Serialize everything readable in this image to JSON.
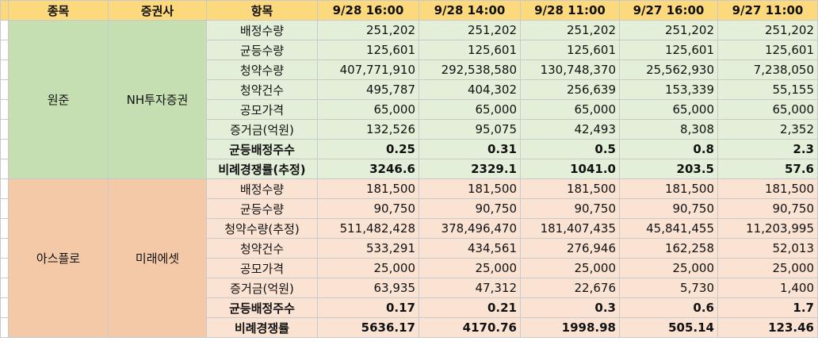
{
  "headers": {
    "stock": "종목",
    "broker": "증권사",
    "item": "항목",
    "times": [
      "9/28 16:00",
      "9/28 14:00",
      "9/28 11:00",
      "9/27 16:00",
      "9/27 11:00"
    ]
  },
  "colors": {
    "header_bg": "#fcd97c",
    "group1_dark": "#c6dfb2",
    "group1_light": "#e3efd9",
    "group2_dark": "#f4c9a8",
    "group2_light": "#fbe3d4"
  },
  "groups": [
    {
      "stock": "원준",
      "broker": "NH투자증권",
      "rows": [
        {
          "label": "배정수량",
          "bold": false,
          "values": [
            "251,202",
            "251,202",
            "251,202",
            "251,202",
            "251,202"
          ]
        },
        {
          "label": "균등수량",
          "bold": false,
          "values": [
            "125,601",
            "125,601",
            "125,601",
            "125,601",
            "125,601"
          ]
        },
        {
          "label": "청약수량",
          "bold": false,
          "values": [
            "407,771,910",
            "292,538,580",
            "130,748,370",
            "25,562,930",
            "7,238,050"
          ]
        },
        {
          "label": "청약건수",
          "bold": false,
          "values": [
            "495,787",
            "404,302",
            "256,639",
            "153,339",
            "55,155"
          ]
        },
        {
          "label": "공모가격",
          "bold": false,
          "values": [
            "65,000",
            "65,000",
            "65,000",
            "65,000",
            "65,000"
          ]
        },
        {
          "label": "증거금(억원)",
          "bold": false,
          "values": [
            "132,526",
            "95,075",
            "42,493",
            "8,308",
            "2,352"
          ]
        },
        {
          "label": "균등배정주수",
          "bold": true,
          "values": [
            "0.25",
            "0.31",
            "0.5",
            "0.8",
            "2.3"
          ]
        },
        {
          "label": "비례경쟁률(추정)",
          "bold": true,
          "values": [
            "3246.6",
            "2329.1",
            "1041.0",
            "203.5",
            "57.6"
          ]
        }
      ]
    },
    {
      "stock": "아스플로",
      "broker": "미래에셋",
      "rows": [
        {
          "label": "배정수량",
          "bold": false,
          "values": [
            "181,500",
            "181,500",
            "181,500",
            "181,500",
            "181,500"
          ]
        },
        {
          "label": "균등수량",
          "bold": false,
          "values": [
            "90,750",
            "90,750",
            "90,750",
            "90,750",
            "90,750"
          ]
        },
        {
          "label": "청약수량(추정)",
          "bold": false,
          "values": [
            "511,482,428",
            "378,496,470",
            "181,407,435",
            "45,841,455",
            "11,203,995"
          ]
        },
        {
          "label": "청약건수",
          "bold": false,
          "values": [
            "533,291",
            "434,561",
            "276,946",
            "162,258",
            "52,013"
          ]
        },
        {
          "label": "공모가격",
          "bold": false,
          "values": [
            "25,000",
            "25,000",
            "25,000",
            "25,000",
            "25,000"
          ]
        },
        {
          "label": "증거금(억원)",
          "bold": false,
          "values": [
            "63,935",
            "47,312",
            "22,676",
            "5,730",
            "1,400"
          ]
        },
        {
          "label": "균등배정주수",
          "bold": true,
          "values": [
            "0.17",
            "0.21",
            "0.3",
            "0.6",
            "1.7"
          ]
        },
        {
          "label": "비례경쟁률",
          "bold": true,
          "values": [
            "5636.17",
            "4170.76",
            "1998.98",
            "505.14",
            "123.46"
          ]
        }
      ]
    }
  ]
}
